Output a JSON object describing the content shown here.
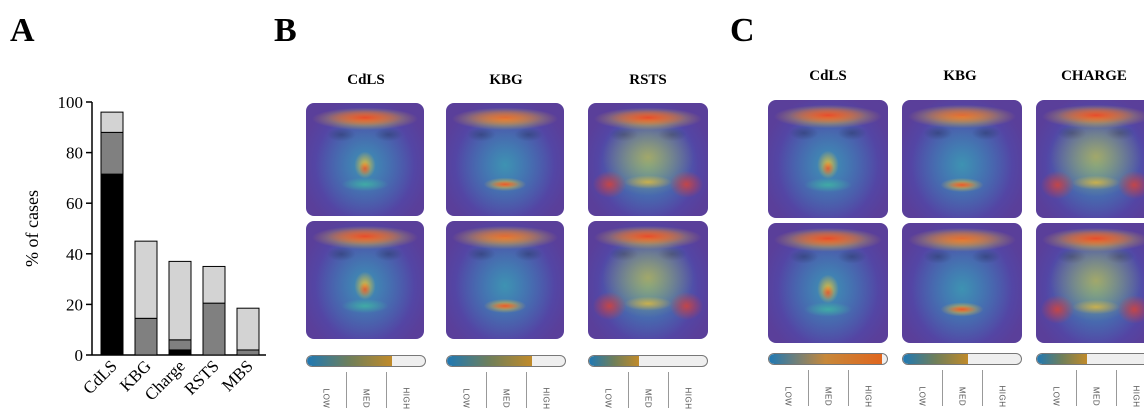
{
  "panels": {
    "a_letter": "A",
    "b_letter": "B",
    "c_letter": "C"
  },
  "chart_data": {
    "type": "bar",
    "stacked": true,
    "categories": [
      "CdLS",
      "KBG",
      "Charge",
      "RSTS",
      "MBS"
    ],
    "series": [
      {
        "values": [
          71.5,
          0,
          2,
          0,
          0
        ],
        "color": "#000000"
      },
      {
        "values": [
          16.5,
          14.5,
          4,
          20.5,
          2
        ],
        "color": "#808080"
      },
      {
        "values": [
          8,
          30.5,
          31,
          14.5,
          16.5
        ],
        "color": "#d3d3d3"
      }
    ],
    "ylabel": "% of cases",
    "xlabel": "",
    "ylim": [
      0,
      100
    ],
    "yticks": [
      0,
      20,
      40,
      60,
      80,
      100
    ],
    "grid": false
  },
  "panel_b": {
    "titles": [
      "CdLS",
      "KBG",
      "RSTS"
    ],
    "fill_fraction": [
      0.72,
      0.72,
      0.42
    ]
  },
  "panel_c": {
    "titles": [
      "CdLS",
      "KBG",
      "CHARGE"
    ],
    "fill_fraction": [
      0.96,
      0.55,
      0.42
    ]
  },
  "colorbar": {
    "low": "LOW",
    "med": "MED",
    "high": "HIGH"
  },
  "colors": {
    "heat_hot": "#e8402a",
    "heat_warm": "#f2c030",
    "heat_mid": "#3fbfa0",
    "heat_cool": "#3a5fcd",
    "heat_base": "#5a3f9a"
  }
}
